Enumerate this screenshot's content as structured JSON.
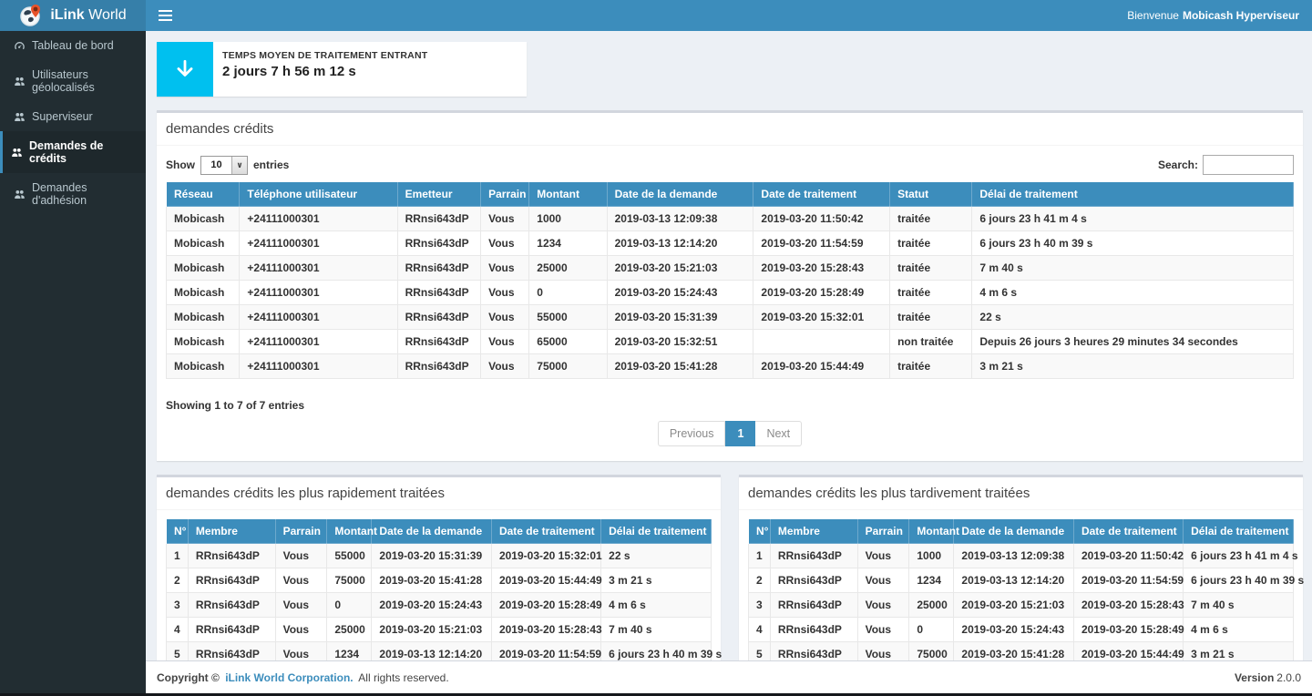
{
  "app": {
    "brand_bold": "iLink",
    "brand_regular": "World",
    "welcome_prefix": "Bienvenue",
    "welcome_user": "Mobicash Hyperviseur"
  },
  "sidebar": {
    "items": [
      {
        "label": "Tableau de bord"
      },
      {
        "label": "Utilisateurs géolocalisés"
      },
      {
        "label": "Superviseur"
      },
      {
        "label": "Demandes de crédits"
      },
      {
        "label": "Demandes d'adhésion"
      }
    ]
  },
  "stat_card": {
    "label": "TEMPS MOYEN DE TRAITEMENT ENTRANT",
    "value": "2 jours 7 h 56 m 12 s",
    "icon": "arrow-down-icon",
    "color": "#00c0ef"
  },
  "credits_box": {
    "title": "demandes crédits",
    "show_label": "Show",
    "page_size": "10",
    "entries_label": "entries",
    "search_label": "Search:",
    "search_value": "",
    "columns": [
      "Réseau",
      "Téléphone utilisateur",
      "Emetteur",
      "Parrain",
      "Montant",
      "Date de la demande",
      "Date de traitement",
      "Statut",
      "Délai de traitement"
    ],
    "rows": [
      [
        "Mobicash",
        "+24111000301",
        "RRnsi643dP",
        "Vous",
        "1000",
        "2019-03-13 12:09:38",
        "2019-03-20 11:50:42",
        "traitée",
        "6 jours 23 h 41 m 4 s"
      ],
      [
        "Mobicash",
        "+24111000301",
        "RRnsi643dP",
        "Vous",
        "1234",
        "2019-03-13 12:14:20",
        "2019-03-20 11:54:59",
        "traitée",
        "6 jours 23 h 40 m 39 s"
      ],
      [
        "Mobicash",
        "+24111000301",
        "RRnsi643dP",
        "Vous",
        "25000",
        "2019-03-20 15:21:03",
        "2019-03-20 15:28:43",
        "traitée",
        "7 m 40 s"
      ],
      [
        "Mobicash",
        "+24111000301",
        "RRnsi643dP",
        "Vous",
        "0",
        "2019-03-20 15:24:43",
        "2019-03-20 15:28:49",
        "traitée",
        "4 m 6 s"
      ],
      [
        "Mobicash",
        "+24111000301",
        "RRnsi643dP",
        "Vous",
        "55000",
        "2019-03-20 15:31:39",
        "2019-03-20 15:32:01",
        "traitée",
        "22 s"
      ],
      [
        "Mobicash",
        "+24111000301",
        "RRnsi643dP",
        "Vous",
        "65000",
        "2019-03-20 15:32:51",
        "",
        "non traitée",
        "Depuis 26 jours 3 heures 29 minutes 34 secondes"
      ],
      [
        "Mobicash",
        "+24111000301",
        "RRnsi643dP",
        "Vous",
        "75000",
        "2019-03-20 15:41:28",
        "2019-03-20 15:44:49",
        "traitée",
        "3 m 21 s"
      ]
    ],
    "summary": "Showing 1 to 7 of 7 entries",
    "pagination": {
      "previous": "Previous",
      "current": "1",
      "next": "Next"
    }
  },
  "fast_box": {
    "title": "demandes crédits les plus rapidement traitées",
    "columns": [
      "N°",
      "Membre",
      "Parrain",
      "Montant",
      "Date de la demande",
      "Date de traitement",
      "Délai de traitement"
    ],
    "rows": [
      [
        "1",
        "RRnsi643dP",
        "Vous",
        "55000",
        "2019-03-20 15:31:39",
        "2019-03-20 15:32:01",
        "22 s"
      ],
      [
        "2",
        "RRnsi643dP",
        "Vous",
        "75000",
        "2019-03-20 15:41:28",
        "2019-03-20 15:44:49",
        "3 m 21 s"
      ],
      [
        "3",
        "RRnsi643dP",
        "Vous",
        "0",
        "2019-03-20 15:24:43",
        "2019-03-20 15:28:49",
        "4 m 6 s"
      ],
      [
        "4",
        "RRnsi643dP",
        "Vous",
        "25000",
        "2019-03-20 15:21:03",
        "2019-03-20 15:28:43",
        "7 m 40 s"
      ],
      [
        "5",
        "RRnsi643dP",
        "Vous",
        "1234",
        "2019-03-13 12:14:20",
        "2019-03-20 11:54:59",
        "6 jours 23 h 40 m 39 s"
      ]
    ]
  },
  "slow_box": {
    "title": "demandes crédits les plus tardivement traitées",
    "columns": [
      "N°",
      "Membre",
      "Parrain",
      "Montant",
      "Date de la demande",
      "Date de traitement",
      "Délai de traitement"
    ],
    "rows": [
      [
        "1",
        "RRnsi643dP",
        "Vous",
        "1000",
        "2019-03-13 12:09:38",
        "2019-03-20 11:50:42",
        "6 jours 23 h 41 m 4 s"
      ],
      [
        "2",
        "RRnsi643dP",
        "Vous",
        "1234",
        "2019-03-13 12:14:20",
        "2019-03-20 11:54:59",
        "6 jours 23 h 40 m 39 s"
      ],
      [
        "3",
        "RRnsi643dP",
        "Vous",
        "25000",
        "2019-03-20 15:21:03",
        "2019-03-20 15:28:43",
        "7 m 40 s"
      ],
      [
        "4",
        "RRnsi643dP",
        "Vous",
        "0",
        "2019-03-20 15:24:43",
        "2019-03-20 15:28:49",
        "4 m 6 s"
      ],
      [
        "5",
        "RRnsi643dP",
        "Vous",
        "75000",
        "2019-03-20 15:41:28",
        "2019-03-20 15:44:49",
        "3 m 21 s"
      ]
    ]
  },
  "footer": {
    "copyright_bold": "Copyright ©",
    "company": "iLink World Corporation.",
    "rights": "All rights reserved.",
    "version_label": "Version",
    "version_value": "2.0.0"
  },
  "colors": {
    "accent": "#3c8dbc",
    "info": "#00c0ef",
    "sidebar": "#222d32"
  }
}
